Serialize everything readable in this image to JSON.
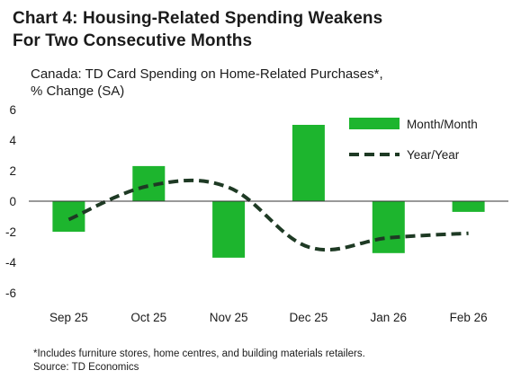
{
  "title_line1": "Chart 4: Housing-Related Spending Weakens",
  "title_line2": "For Two Consecutive Months",
  "subtitle_line1": "Canada: TD Card Spending on Home-Related Purchases*,",
  "subtitle_line2": "% Change (SA)",
  "footnote": "*Includes furniture stores, home centres, and building materials retailers.",
  "source": "Source: TD Economics",
  "colors": {
    "bar": "#1db52e",
    "line": "#1e3a24",
    "axis": "#333333",
    "text": "#1b1b1b"
  },
  "chart_data": {
    "type": "bar",
    "categories": [
      "Sep 25",
      "Oct 25",
      "Nov 25",
      "Dec 25",
      "Jan 26",
      "Feb 26"
    ],
    "ylim": [
      -6,
      6
    ],
    "yticks": [
      -6,
      -4,
      -2,
      0,
      2,
      4,
      6
    ],
    "grid": false,
    "legend_position": "top-right",
    "series": [
      {
        "name": "Month/Month",
        "kind": "bar",
        "values": [
          -2.0,
          2.3,
          -3.7,
          5.0,
          -3.4,
          -0.7
        ]
      },
      {
        "name": "Year/Year",
        "kind": "line",
        "style": "dashed",
        "values": [
          -1.2,
          1.0,
          0.9,
          -3.0,
          -2.4,
          -2.1
        ]
      }
    ]
  }
}
